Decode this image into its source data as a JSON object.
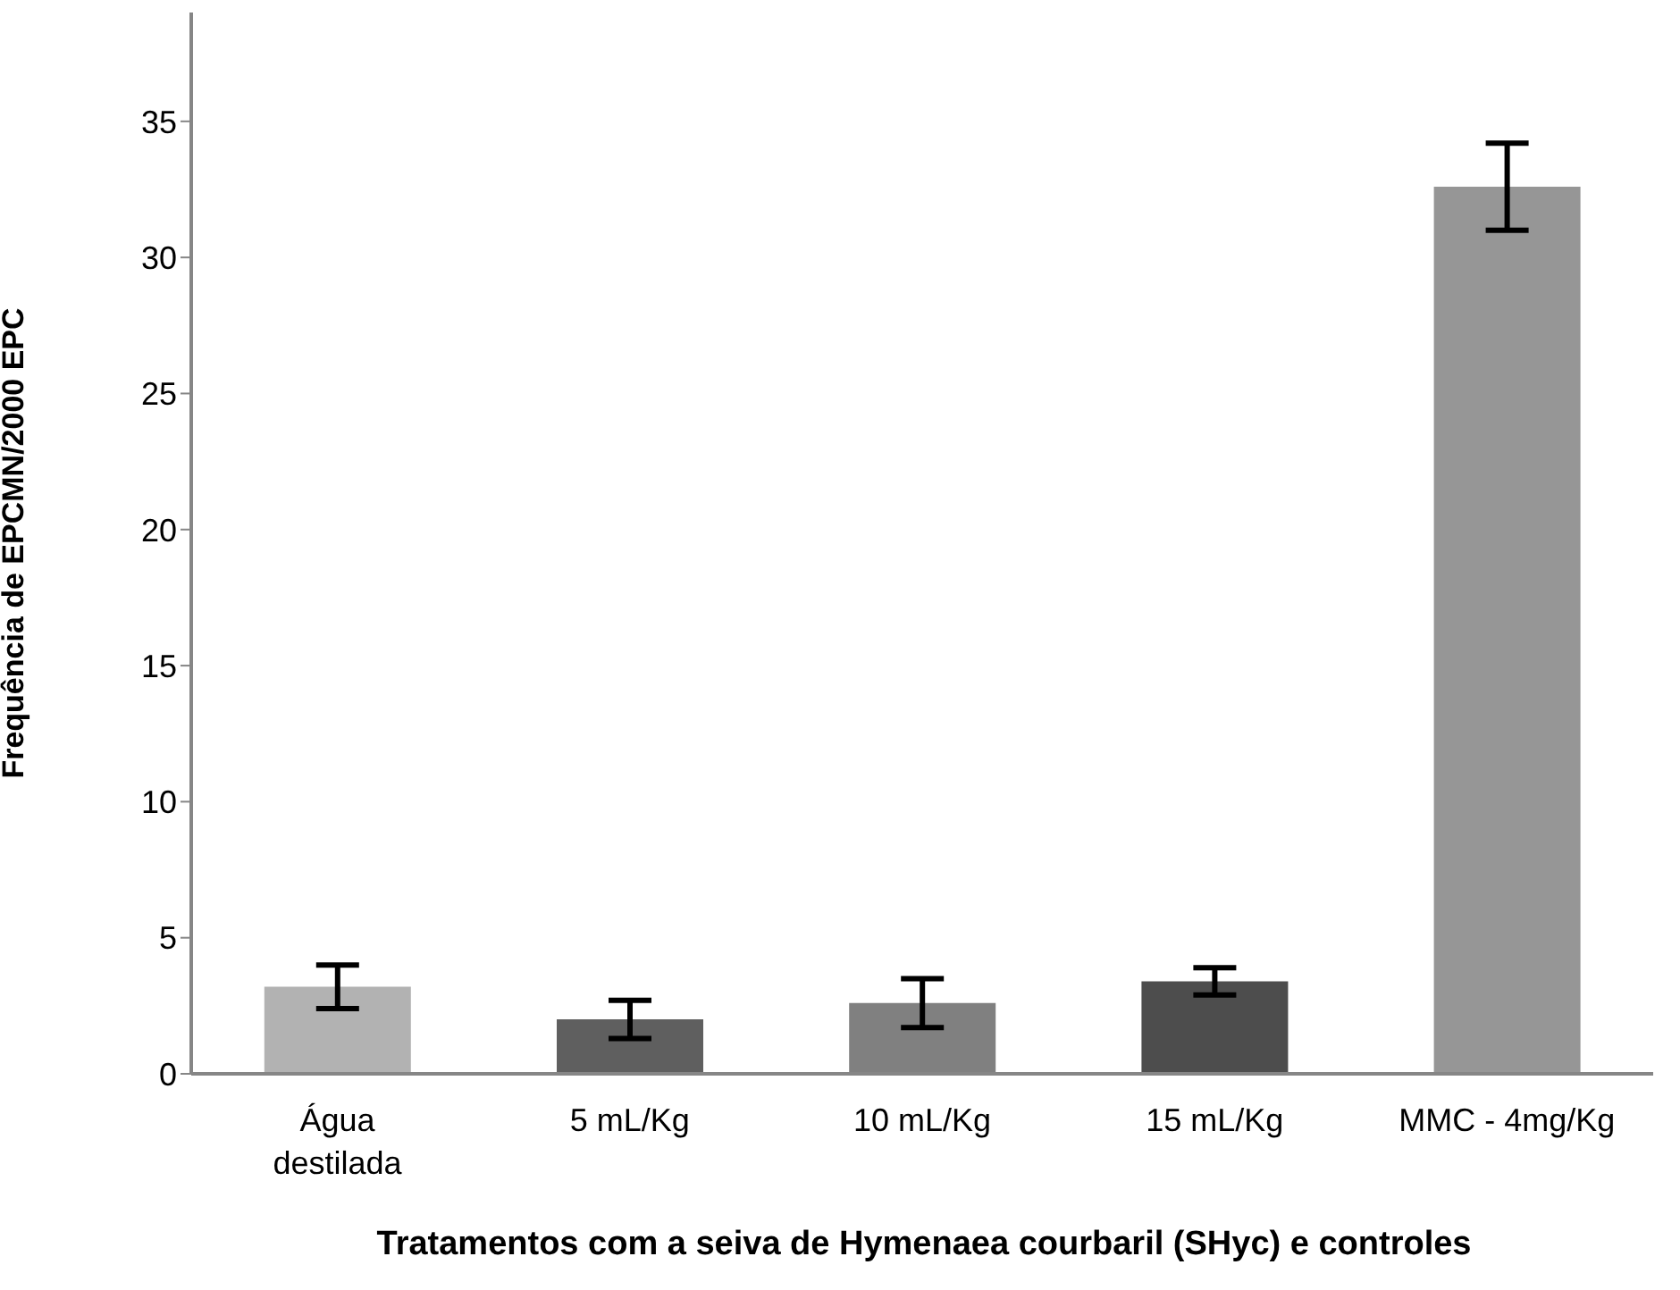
{
  "chart_data": {
    "type": "bar",
    "xlabel": "Tratamentos com a seiva de Hymenaea courbaril (SHyc) e controles",
    "ylabel": "Frequência de EPCMN/2000 EPC",
    "categories": [
      "Água destilada",
      "5 mL/Kg",
      "10  mL/Kg",
      "15 mL/Kg",
      "MMC - 4mg/Kg"
    ],
    "values": [
      3.2,
      2.0,
      2.6,
      3.4,
      32.6
    ],
    "errors": [
      0.8,
      0.7,
      0.9,
      0.5,
      1.6
    ],
    "colors": [
      "#b2b2b2",
      "#5f5f5f",
      "#808080",
      "#4d4d4d",
      "#969696"
    ],
    "ylim": [
      0,
      39
    ],
    "yticks": [
      0,
      5,
      10,
      15,
      20,
      25,
      30,
      35
    ],
    "grid": false,
    "legend": false
  }
}
